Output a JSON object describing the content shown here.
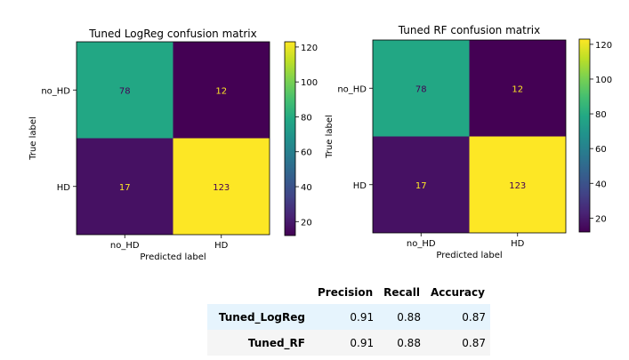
{
  "chart_data": [
    {
      "type": "heatmap",
      "title": "Tuned LogReg confusion matrix",
      "xlabel": "Predicted label",
      "ylabel": "True label",
      "x_categories": [
        "no_HD",
        "HD"
      ],
      "y_categories": [
        "no_HD",
        "HD"
      ],
      "values": [
        [
          78,
          12
        ],
        [
          17,
          123
        ]
      ],
      "colorbar_ticks": [
        "20",
        "40",
        "60",
        "80",
        "100",
        "120"
      ],
      "colorbar_range": [
        12,
        123
      ],
      "colormap": "viridis"
    },
    {
      "type": "heatmap",
      "title": "Tuned RF confusion matrix",
      "xlabel": "Predicted label",
      "ylabel": "True label",
      "x_categories": [
        "no_HD",
        "HD"
      ],
      "y_categories": [
        "no_HD",
        "HD"
      ],
      "values": [
        [
          78,
          12
        ],
        [
          17,
          123
        ]
      ],
      "colorbar_ticks": [
        "20",
        "40",
        "60",
        "80",
        "100",
        "120"
      ],
      "colorbar_range": [
        12,
        123
      ],
      "colormap": "viridis"
    }
  ],
  "metrics_table": {
    "columns": [
      "Precision",
      "Recall",
      "Accuracy"
    ],
    "rows": [
      {
        "label": "Tuned_LogReg",
        "values": [
          "0.91",
          "0.88",
          "0.87"
        ]
      },
      {
        "label": "Tuned_RF",
        "values": [
          "0.91",
          "0.88",
          "0.87"
        ]
      }
    ]
  },
  "colors": {
    "viridis_low": "#440154",
    "viridis_high": "#fde725",
    "text_light": "#fde725",
    "text_dark": "#440154",
    "table_row_highlight": "#e6f4fd",
    "table_row_alt": "#f5f5f5"
  }
}
